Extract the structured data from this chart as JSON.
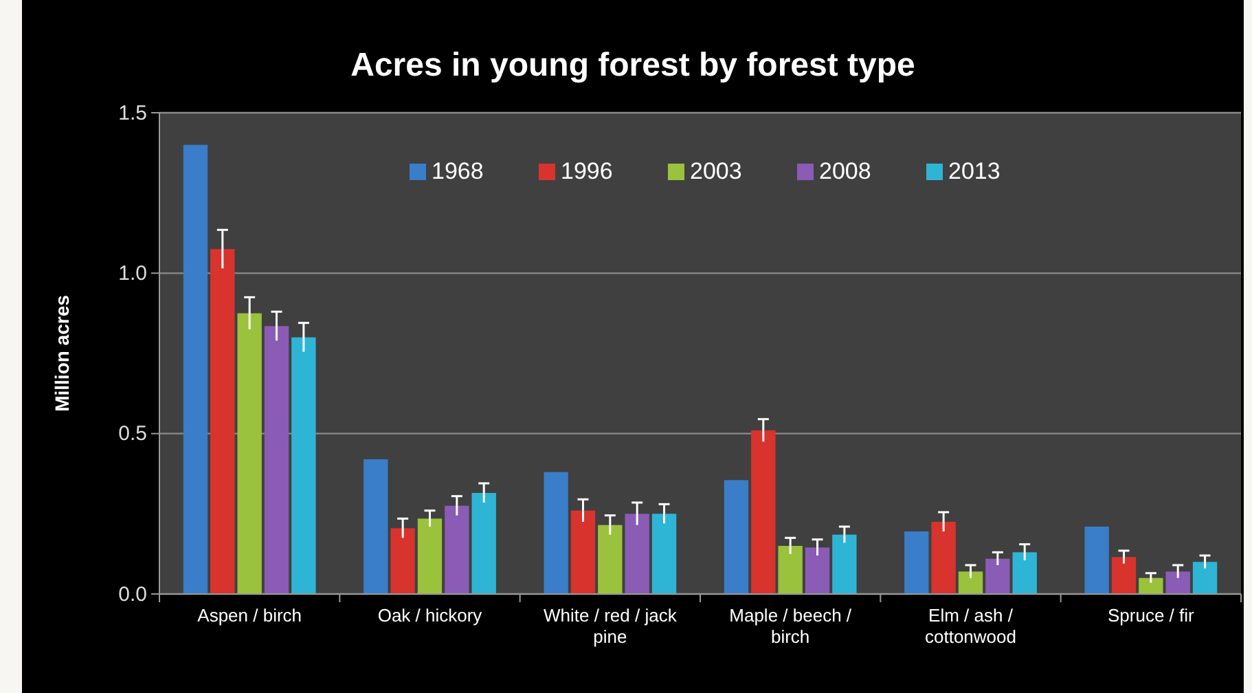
{
  "chart_data": {
    "type": "bar",
    "title": "Acres in young forest by forest type",
    "ylabel": "Million acres",
    "categories": [
      "Aspen / birch",
      "Oak / hickory",
      "White / red / jack pine",
      "Maple / beech / birch",
      "Elm / ash / cottonwood",
      "Spruce / fir"
    ],
    "series": [
      {
        "name": "1968",
        "color": "#3a7dc9",
        "values": [
          1.4,
          0.42,
          0.38,
          0.355,
          0.195,
          0.21
        ]
      },
      {
        "name": "1996",
        "color": "#d9332e",
        "values": [
          1.075,
          0.205,
          0.26,
          0.51,
          0.225,
          0.115
        ],
        "errors": [
          0.06,
          0.03,
          0.035,
          0.035,
          0.03,
          0.02
        ]
      },
      {
        "name": "2003",
        "color": "#9bc23c",
        "values": [
          0.875,
          0.235,
          0.215,
          0.15,
          0.07,
          0.05
        ],
        "errors": [
          0.05,
          0.025,
          0.03,
          0.025,
          0.02,
          0.015
        ]
      },
      {
        "name": "2008",
        "color": "#8a5cb5",
        "values": [
          0.835,
          0.275,
          0.25,
          0.145,
          0.11,
          0.07
        ],
        "errors": [
          0.045,
          0.03,
          0.035,
          0.025,
          0.02,
          0.02
        ]
      },
      {
        "name": "2013",
        "color": "#2eb5d6",
        "values": [
          0.8,
          0.315,
          0.25,
          0.185,
          0.13,
          0.1
        ],
        "errors": [
          0.045,
          0.03,
          0.03,
          0.025,
          0.025,
          0.02
        ]
      }
    ],
    "ylim": [
      0,
      1.5
    ],
    "yticks": [
      {
        "value": 0,
        "label": "0.0"
      },
      {
        "value": 0.5,
        "label": "0.5"
      },
      {
        "value": 1,
        "label": "1.0"
      },
      {
        "value": 1.5,
        "label": "1.5"
      }
    ],
    "grid": "y",
    "legend": "top right"
  }
}
